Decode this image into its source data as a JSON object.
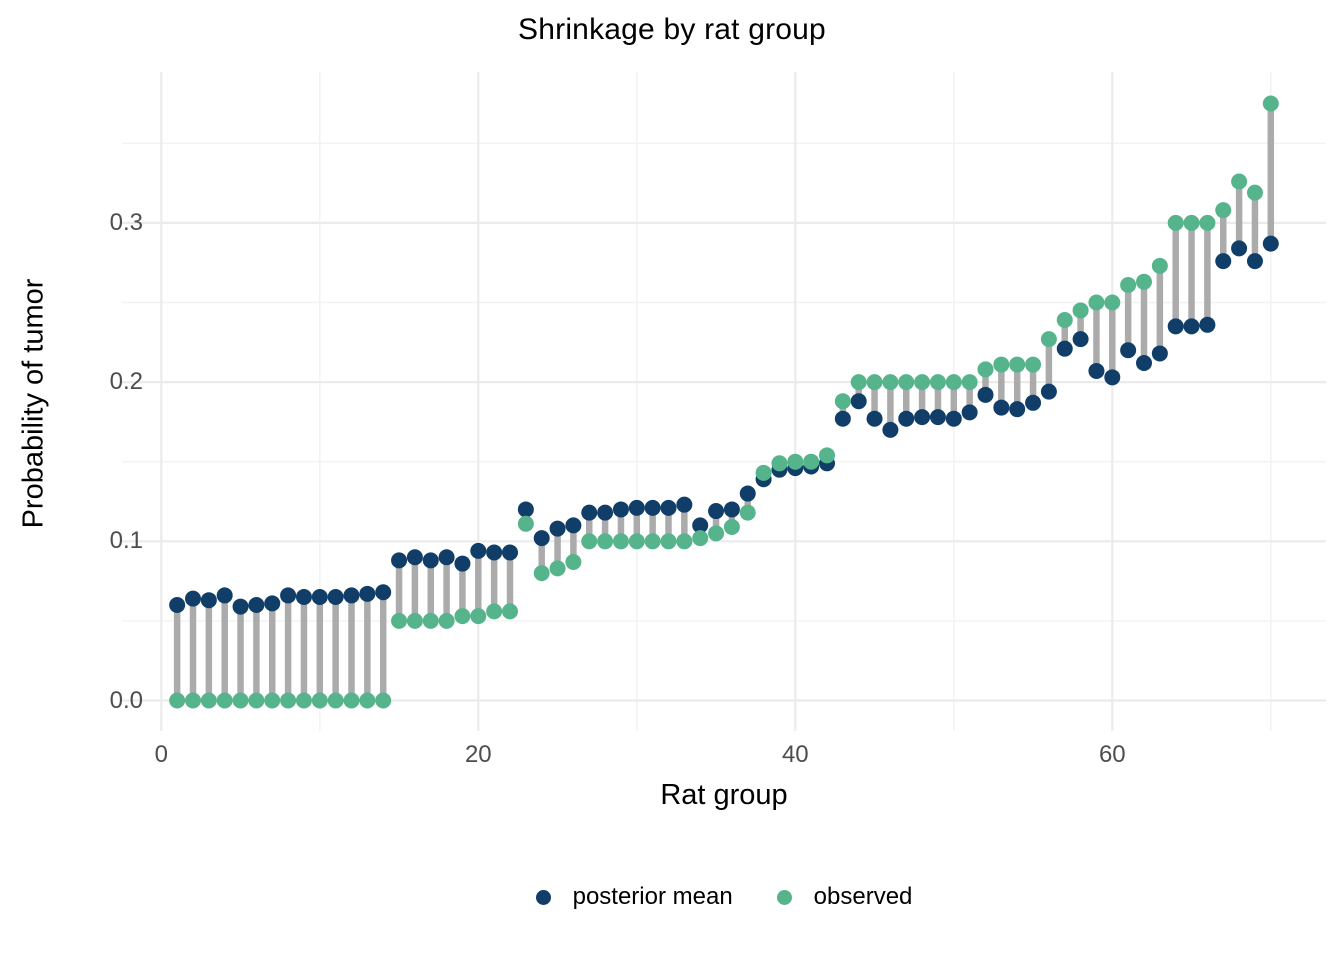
{
  "chart_data": {
    "type": "scatter",
    "title": "Shrinkage by rat group",
    "xlabel": "Rat group",
    "ylabel": "Probability of tumor",
    "grid": true,
    "legend_position": "bottom",
    "xlim": [
      -2.5,
      73.5
    ],
    "ylim": [
      -0.019,
      0.394
    ],
    "x_ticks": [
      {
        "label": "0",
        "value": 0
      },
      {
        "label": "20",
        "value": 20
      },
      {
        "label": "40",
        "value": 40
      },
      {
        "label": "60",
        "value": 60
      }
    ],
    "x_minor_ticks": [
      10,
      30,
      50,
      70
    ],
    "y_ticks": [
      {
        "label": "0.0",
        "value": 0.0
      },
      {
        "label": "0.1",
        "value": 0.1
      },
      {
        "label": "0.2",
        "value": 0.2
      },
      {
        "label": "0.3",
        "value": 0.3
      }
    ],
    "y_minor_ticks": [
      0.05,
      0.15,
      0.25,
      0.35
    ],
    "x": [
      1,
      2,
      3,
      4,
      5,
      6,
      7,
      8,
      9,
      10,
      11,
      12,
      13,
      14,
      15,
      16,
      17,
      18,
      19,
      20,
      21,
      22,
      23,
      24,
      25,
      26,
      27,
      28,
      29,
      30,
      31,
      32,
      33,
      34,
      35,
      36,
      37,
      38,
      39,
      40,
      41,
      42,
      43,
      44,
      45,
      46,
      47,
      48,
      49,
      50,
      51,
      52,
      53,
      54,
      55,
      56,
      57,
      58,
      59,
      60,
      61,
      62,
      63,
      64,
      65,
      66,
      67,
      68,
      69,
      70
    ],
    "series": [
      {
        "name": "posterior mean",
        "color": "#103E68",
        "values": [
          0.06,
          0.064,
          0.063,
          0.066,
          0.059,
          0.06,
          0.061,
          0.066,
          0.065,
          0.065,
          0.065,
          0.066,
          0.067,
          0.068,
          0.088,
          0.09,
          0.088,
          0.09,
          0.086,
          0.094,
          0.093,
          0.093,
          0.12,
          0.102,
          0.108,
          0.11,
          0.118,
          0.118,
          0.12,
          0.121,
          0.121,
          0.121,
          0.123,
          0.11,
          0.119,
          0.12,
          0.13,
          0.139,
          0.145,
          0.146,
          0.147,
          0.149,
          0.177,
          0.188,
          0.177,
          0.17,
          0.177,
          0.178,
          0.178,
          0.177,
          0.181,
          0.192,
          0.184,
          0.183,
          0.187,
          0.194,
          0.221,
          0.227,
          0.207,
          0.203,
          0.22,
          0.212,
          0.218,
          0.235,
          0.235,
          0.236,
          0.276,
          0.284,
          0.276,
          0.287
        ]
      },
      {
        "name": "observed",
        "color": "#56B48C",
        "values": [
          0,
          0,
          0,
          0,
          0,
          0,
          0,
          0,
          0,
          0,
          0,
          0,
          0,
          0,
          0.05,
          0.05,
          0.05,
          0.05,
          0.053,
          0.053,
          0.056,
          0.056,
          0.111,
          0.08,
          0.083,
          0.087,
          0.1,
          0.1,
          0.1,
          0.1,
          0.1,
          0.1,
          0.1,
          0.102,
          0.105,
          0.109,
          0.118,
          0.143,
          0.149,
          0.15,
          0.15,
          0.154,
          0.188,
          0.2,
          0.2,
          0.2,
          0.2,
          0.2,
          0.2,
          0.2,
          0.2,
          0.208,
          0.211,
          0.211,
          0.211,
          0.227,
          0.239,
          0.245,
          0.25,
          0.25,
          0.261,
          0.263,
          0.273,
          0.3,
          0.3,
          0.3,
          0.308,
          0.326,
          0.319,
          0.375
        ]
      }
    ],
    "segment_color": "#ABABAB",
    "grid_major_color": "#EBEBEB",
    "grid_minor_color": "#F2F2F2",
    "tick_label_color": "#4d4d4d"
  }
}
